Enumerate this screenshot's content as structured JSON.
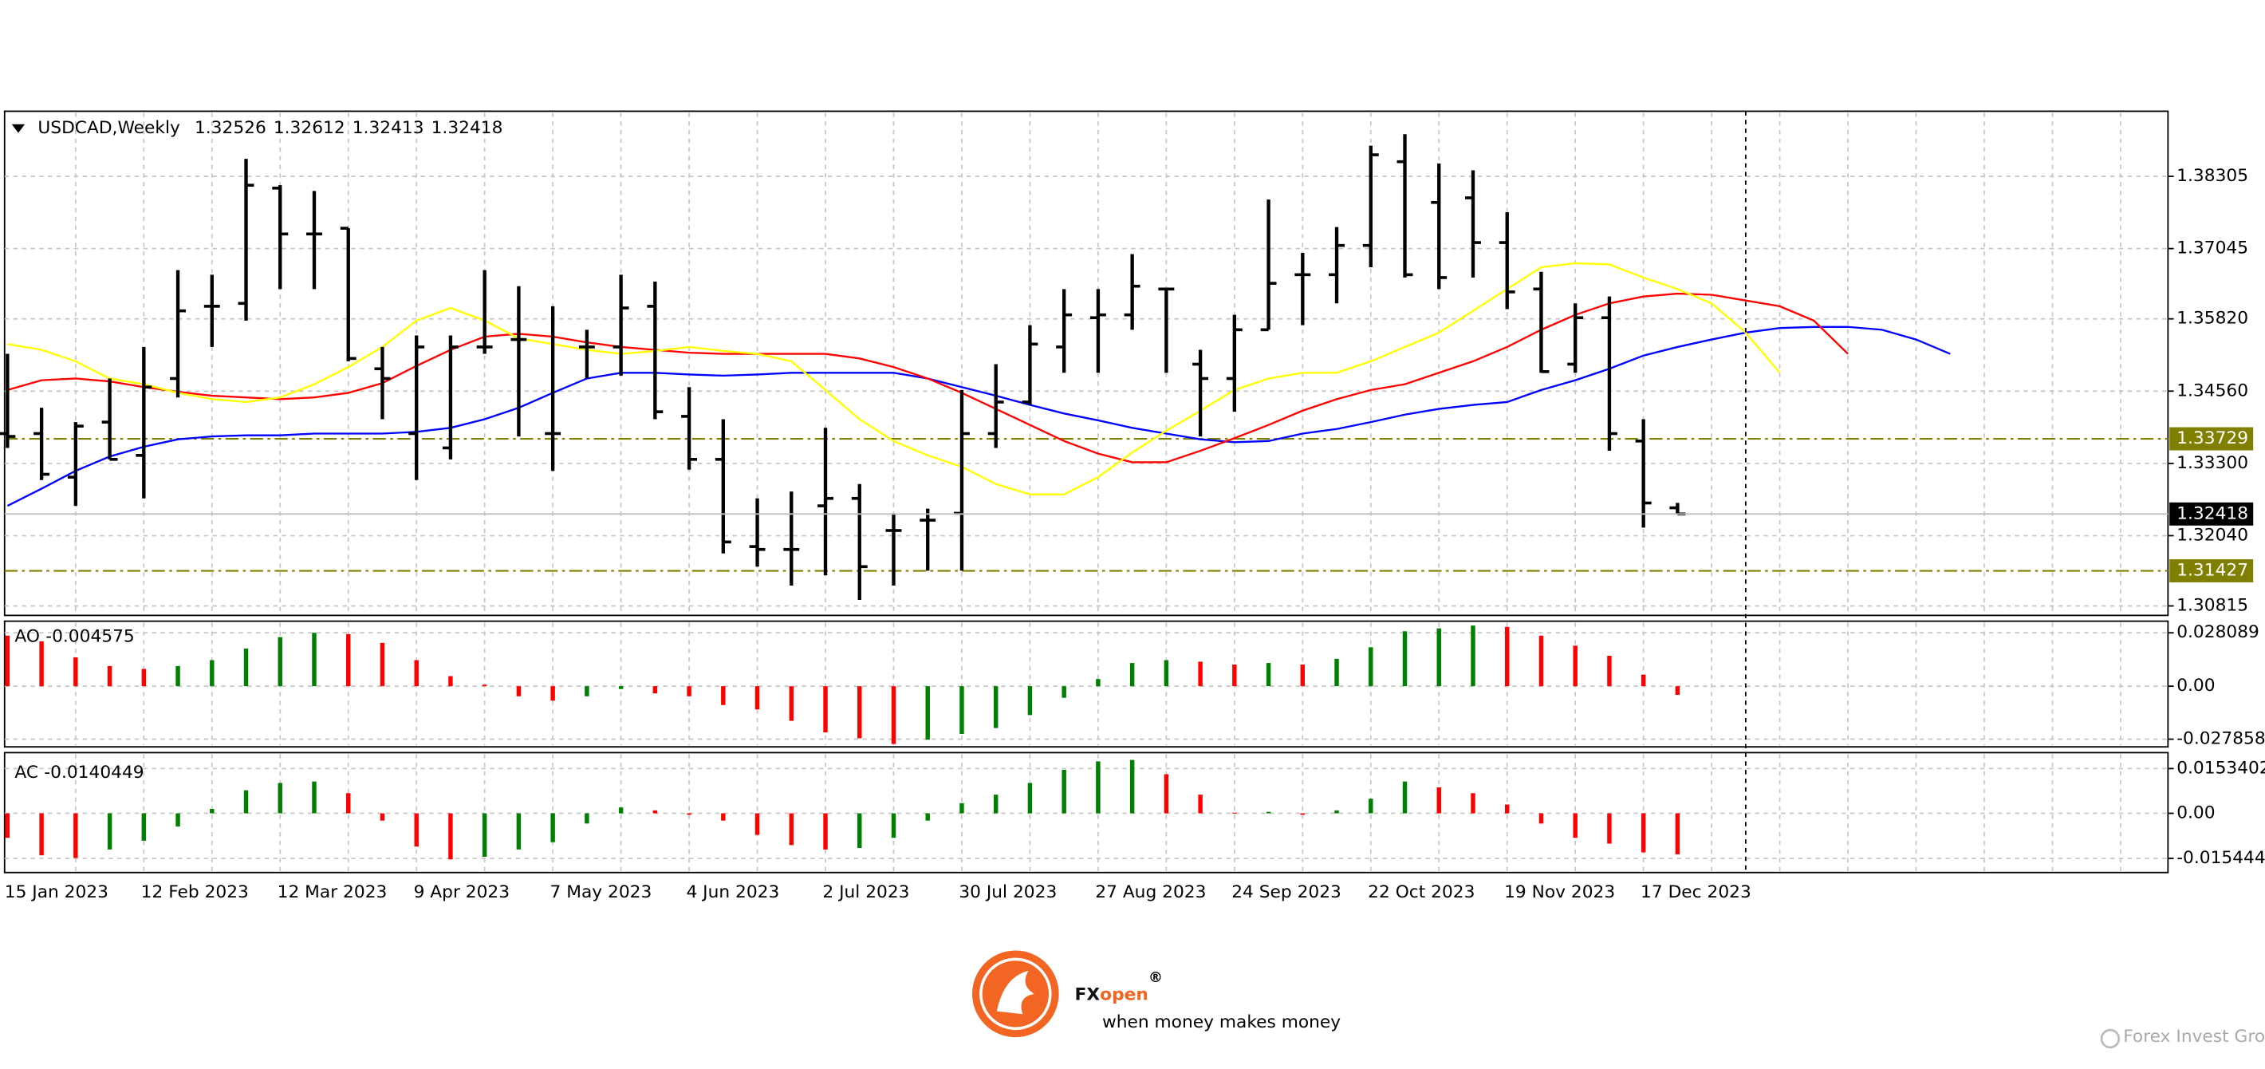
{
  "chart_data": [
    {
      "type": "ohlc",
      "title": "USDCAD,Weekly",
      "categories": [
        "15 Jan 2023",
        null,
        null,
        null,
        "12 Feb 2023",
        null,
        null,
        null,
        "12 Mar 2023",
        null,
        null,
        null,
        "9 Apr 2023",
        null,
        null,
        null,
        "7 May 2023",
        null,
        null,
        null,
        "4 Jun 2023",
        null,
        null,
        null,
        "2 Jul 2023",
        null,
        null,
        null,
        "30 Jul 2023",
        null,
        null,
        null,
        "27 Aug 2023",
        null,
        null,
        null,
        "24 Sep 2023",
        null,
        null,
        null,
        "22 Oct 2023",
        null,
        null,
        null,
        "19 Nov 2023",
        null,
        null,
        null,
        "17 Dec 2023",
        null,
        null,
        null,
        null,
        null,
        null,
        null,
        null,
        null
      ],
      "open": [
        1.3382,
        1.3382,
        1.3306,
        1.3402,
        1.3344,
        1.3478,
        1.3604,
        1.3609,
        1.381,
        1.373,
        1.374,
        1.3495,
        1.3382,
        1.3357,
        1.3533,
        1.3546,
        1.3382,
        1.3533,
        1.3533,
        1.3604,
        1.3412,
        1.3337,
        1.3185,
        1.318,
        1.3256,
        1.3269,
        1.3213,
        1.3231,
        1.3243,
        1.3382,
        1.3437,
        1.3533,
        1.3584,
        1.3589,
        1.3634,
        1.3503,
        1.3478,
        1.3563,
        1.3659,
        1.3659,
        1.371,
        1.3856,
        1.3785,
        1.3793,
        1.3715,
        1.3634,
        1.3503,
        1.3584,
        1.3369,
        1.32526,
        null,
        null,
        null,
        null,
        null,
        null,
        null,
        null
      ],
      "high": [
        1.3521,
        1.3427,
        1.3402,
        1.3478,
        1.3533,
        1.3667,
        1.3659,
        1.3861,
        1.3815,
        1.3805,
        1.374,
        1.3533,
        1.3553,
        1.3553,
        1.3667,
        1.3639,
        1.3604,
        1.3563,
        1.3659,
        1.3647,
        1.3463,
        1.3407,
        1.3269,
        1.3281,
        1.3392,
        1.3294,
        1.3243,
        1.3251,
        1.3458,
        1.3503,
        1.3571,
        1.3634,
        1.3634,
        1.3695,
        1.3634,
        1.3528,
        1.3589,
        1.379,
        1.3697,
        1.3742,
        1.3884,
        1.3904,
        1.3853,
        1.3841,
        1.3768,
        1.3664,
        1.3609,
        1.3621,
        1.3407,
        1.32612,
        null,
        null,
        null,
        null,
        null,
        null,
        null,
        null
      ],
      "low": [
        1.3357,
        1.3301,
        1.3256,
        1.3337,
        1.3269,
        1.3445,
        1.3533,
        1.3579,
        1.3634,
        1.3634,
        1.3508,
        1.3407,
        1.3301,
        1.3337,
        1.3521,
        1.3377,
        1.3317,
        1.3478,
        1.3483,
        1.3407,
        1.3319,
        1.3173,
        1.315,
        1.3117,
        1.3135,
        1.3092,
        1.3117,
        1.3143,
        1.3143,
        1.3357,
        1.3432,
        1.3488,
        1.3488,
        1.3563,
        1.3488,
        1.3377,
        1.342,
        1.3563,
        1.3571,
        1.3609,
        1.3672,
        1.3654,
        1.3634,
        1.3654,
        1.3599,
        1.3488,
        1.3488,
        1.3352,
        1.3218,
        1.32413,
        null,
        null,
        null,
        null,
        null,
        null,
        null,
        null
      ],
      "close": [
        1.3377,
        1.3311,
        1.3395,
        1.3337,
        1.3463,
        1.3596,
        1.3604,
        1.3815,
        1.373,
        1.373,
        1.3513,
        1.3478,
        1.3533,
        1.3533,
        1.3533,
        1.3546,
        1.3382,
        1.3533,
        1.3601,
        1.342,
        1.3337,
        1.3193,
        1.318,
        1.318,
        1.3269,
        1.315,
        1.3213,
        1.3231,
        1.3382,
        1.3437,
        1.3538,
        1.3589,
        1.3589,
        1.3639,
        1.3634,
        1.3478,
        1.3563,
        1.3644,
        1.3659,
        1.371,
        1.3868,
        1.3659,
        1.3654,
        1.3715,
        1.3629,
        1.349,
        1.3584,
        1.3382,
        1.3261,
        1.32418,
        null,
        null,
        null,
        null,
        null,
        null,
        null,
        null
      ],
      "color": "#000000",
      "lines": [
        {
          "color": "#0000ff",
          "values": [
            1.3256,
            1.3286,
            1.3317,
            1.3342,
            1.3359,
            1.3372,
            1.3377,
            1.3379,
            1.3379,
            1.3382,
            1.3382,
            1.3382,
            1.3385,
            1.3392,
            1.3407,
            1.3427,
            1.3453,
            1.3478,
            1.3488,
            1.3488,
            1.3485,
            1.3483,
            1.3485,
            1.3488,
            1.3488,
            1.3488,
            1.3488,
            1.3478,
            1.3463,
            1.3448,
            1.3432,
            1.3417,
            1.3405,
            1.3392,
            1.3382,
            1.3372,
            1.3367,
            1.3369,
            1.3382,
            1.339,
            1.3402,
            1.3415,
            1.3425,
            1.3432,
            1.3437,
            1.3458,
            1.3475,
            1.3495,
            1.3518,
            1.3533,
            1.3546,
            1.3558,
            1.3566,
            1.3568,
            1.3568,
            1.3563,
            1.3546,
            1.3521
          ]
        },
        {
          "color": "#ff0000",
          "values": [
            1.3458,
            1.3475,
            1.3478,
            1.3473,
            1.3463,
            1.3455,
            1.3448,
            1.3445,
            1.3442,
            1.3445,
            1.3453,
            1.347,
            1.35,
            1.3528,
            1.3551,
            1.3556,
            1.3551,
            1.3541,
            1.3533,
            1.3528,
            1.3523,
            1.3521,
            1.3521,
            1.3521,
            1.3521,
            1.3513,
            1.3498,
            1.3478,
            1.3453,
            1.3425,
            1.3397,
            1.3369,
            1.3347,
            1.3332,
            1.3332,
            1.3352,
            1.3374,
            1.3397,
            1.3422,
            1.3442,
            1.3458,
            1.3468,
            1.3488,
            1.3508,
            1.3533,
            1.3563,
            1.3589,
            1.3609,
            1.3621,
            1.3626,
            1.3624,
            1.3614,
            1.3604,
            1.3579,
            1.3521,
            null,
            null,
            null
          ]
        },
        {
          "color": "#ffff00",
          "values": [
            1.3538,
            1.3528,
            1.3508,
            1.3478,
            1.3468,
            1.3453,
            1.3442,
            1.3437,
            1.3445,
            1.3468,
            1.3498,
            1.3533,
            1.3579,
            1.3601,
            1.3579,
            1.3548,
            1.3538,
            1.3528,
            1.3521,
            1.3526,
            1.3533,
            1.3526,
            1.3521,
            1.3508,
            1.3458,
            1.3407,
            1.3369,
            1.3344,
            1.3324,
            1.3294,
            1.3276,
            1.3276,
            1.3306,
            1.3349,
            1.3387,
            1.3422,
            1.3458,
            1.3478,
            1.3488,
            1.3488,
            1.3508,
            1.3533,
            1.3558,
            1.3596,
            1.3634,
            1.3672,
            1.3679,
            1.3677,
            1.3654,
            1.3634,
            1.3609,
            1.3558,
            1.3488,
            null,
            null,
            null,
            null,
            null
          ]
        }
      ],
      "levels": [
        {
          "value": 1.33729,
          "color": "#808000"
        },
        {
          "value": 1.31427,
          "color": "#808000"
        }
      ],
      "ylim": [
        1.3065,
        1.3944
      ],
      "yticks": [
        1.38305,
        1.37045,
        {
          "value": 1.3582,
          "label": "1.35820"
        },
        {
          "value": 1.3456,
          "label": "1.34560"
        },
        {
          "value": 1.333,
          "label": "1.33300"
        },
        {
          "value": 1.3204,
          "label": "1.32040"
        },
        1.30815
      ],
      "grid": true
    },
    {
      "type": "bar",
      "title": "AO",
      "values": [
        0.0266,
        0.0236,
        0.0152,
        0.0106,
        0.0091,
        0.0106,
        0.0137,
        0.0198,
        0.0258,
        0.0281,
        0.0274,
        0.0228,
        0.0137,
        0.0053,
        0.0008,
        -0.0053,
        -0.0076,
        -0.0053,
        -0.0015,
        -0.0038,
        -0.0053,
        -0.0099,
        -0.0122,
        -0.0182,
        -0.0243,
        -0.0274,
        -0.0304,
        -0.0281,
        -0.0251,
        -0.022,
        -0.0152,
        -0.0061,
        0.0038,
        0.0122,
        0.0137,
        0.0129,
        0.0114,
        0.0122,
        0.0114,
        0.0144,
        0.0205,
        0.0289,
        0.0304,
        0.0319,
        0.0312,
        0.0266,
        0.0213,
        0.016,
        0.0061,
        -0.004575
      ],
      "up_color": "#008000",
      "down_color": "#ff0000",
      "ylim": [
        -0.0319,
        0.0342
      ],
      "yticks": [
        0.028089,
        {
          "value": 0,
          "label": "0.00"
        },
        -0.027858
      ],
      "grid": true
    },
    {
      "type": "bar",
      "title": "AC",
      "values": [
        -0.0084,
        -0.0144,
        -0.0153,
        -0.0124,
        -0.0094,
        -0.0045,
        0.0015,
        0.0079,
        0.0104,
        0.0109,
        0.0069,
        -0.0025,
        -0.0114,
        -0.0158,
        -0.0149,
        -0.0124,
        -0.0099,
        -0.0035,
        0.002,
        0.001,
        -0.0005,
        -0.0025,
        -0.0074,
        -0.0109,
        -0.0124,
        -0.0119,
        -0.0084,
        -0.0025,
        0.0035,
        0.0064,
        0.0104,
        0.0149,
        0.0178,
        0.0183,
        0.0134,
        0.0064,
        0.0002,
        0.0005,
        -0.0005,
        0.001,
        0.005,
        0.0109,
        0.0089,
        0.0069,
        0.003,
        -0.0035,
        -0.0084,
        -0.0104,
        -0.0134,
        -0.0140449
      ],
      "up_color": "#008000",
      "down_color": "#ff0000",
      "ylim": [
        -0.0203,
        0.0208
      ],
      "yticks": [
        0.0153402,
        {
          "value": 0,
          "label": "0.00"
        },
        -0.015444
      ],
      "grid": true
    }
  ],
  "branding": {
    "brand": "FX",
    "brand_accent": "open",
    "registered": "®",
    "tagline": "when money makes money",
    "footer": "Forex Invest Group OU"
  }
}
